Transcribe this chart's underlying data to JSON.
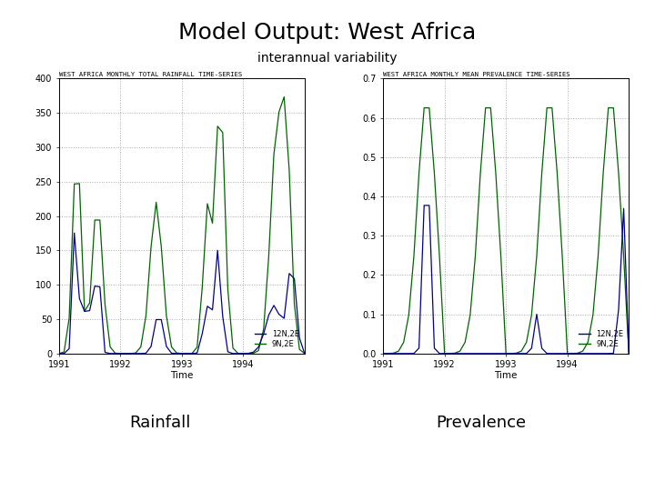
{
  "title": "Model Output: West Africa",
  "subtitle": "interannual variability",
  "title_fontsize": 18,
  "subtitle_fontsize": 10,
  "label_rainfall": "Rainfall",
  "label_prevalence": "Prevalence",
  "label_fontsize": 13,
  "plot1_title": "WEST AFRICA MONTHLY TOTAL RAINFALL TIME-SERIES",
  "plot2_title": "WEST AFRICA MONTHLY MEAN PREVALENCE TIME-SERIES",
  "xlabel": "Time",
  "color_green": "#006400",
  "color_blue": "#00008B",
  "legend_12N2E": "12N,2E",
  "legend_9N2E": "9N,2E",
  "ylim_rain": [
    0,
    400
  ],
  "yticks_rain": [
    0,
    50,
    100,
    150,
    200,
    250,
    300,
    350,
    400
  ],
  "ylim_prev": [
    0,
    0.7
  ],
  "yticks_prev": [
    0,
    0.1,
    0.2,
    0.3,
    0.4,
    0.5,
    0.6,
    0.7
  ],
  "xlim": [
    1991.0,
    1995.0
  ],
  "xticks": [
    1991,
    1992,
    1993,
    1994
  ],
  "n_months": 49,
  "start_year": 1991.0
}
